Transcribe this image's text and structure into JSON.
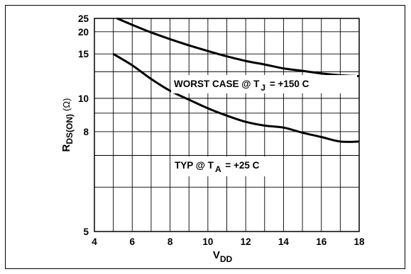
{
  "chart_data": {
    "type": "line",
    "xlabel": {
      "main": "V",
      "sub": "DD"
    },
    "ylabel": {
      "main": "R",
      "sub": "DS(ON)",
      "unit": "(Ω)"
    },
    "xlim": [
      4,
      18
    ],
    "ylim": [
      5,
      25
    ],
    "x_ticks": [
      4,
      6,
      8,
      10,
      12,
      14,
      16,
      18
    ],
    "y_ticks": [
      5,
      8,
      10,
      15,
      20,
      25
    ],
    "y_scale": "nonlinear (1/R spacing)",
    "grid": true,
    "series": [
      {
        "name": "WORST CASE @ TJ = +150 C",
        "x": [
          5.2,
          6.0,
          7.0,
          8.0,
          9.0,
          10.0,
          11.0,
          12.0,
          13.0,
          14.0,
          15.0,
          16.0,
          17.0,
          18.0
        ],
        "y": [
          25.0,
          22.3,
          19.8,
          18.0,
          16.6,
          15.5,
          14.6,
          13.9,
          13.4,
          12.9,
          12.6,
          12.3,
          12.1,
          12.0
        ]
      },
      {
        "name": "TYP @ TA = +25 C",
        "x": [
          5.0,
          6.0,
          7.0,
          8.0,
          9.0,
          10.0,
          11.0,
          12.0,
          13.0,
          14.0,
          15.0,
          16.0,
          17.0,
          18.0
        ],
        "y": [
          15.0,
          13.3,
          11.7,
          10.6,
          9.9,
          9.3,
          8.85,
          8.5,
          8.3,
          8.2,
          7.95,
          7.75,
          7.55,
          7.55
        ]
      }
    ],
    "annotations": [
      {
        "main": "WORST CASE @ T",
        "sub": "J",
        "tail": " = +150 C"
      },
      {
        "main": "TYP @ T",
        "sub": "A",
        "tail": " = +25 C"
      }
    ]
  }
}
